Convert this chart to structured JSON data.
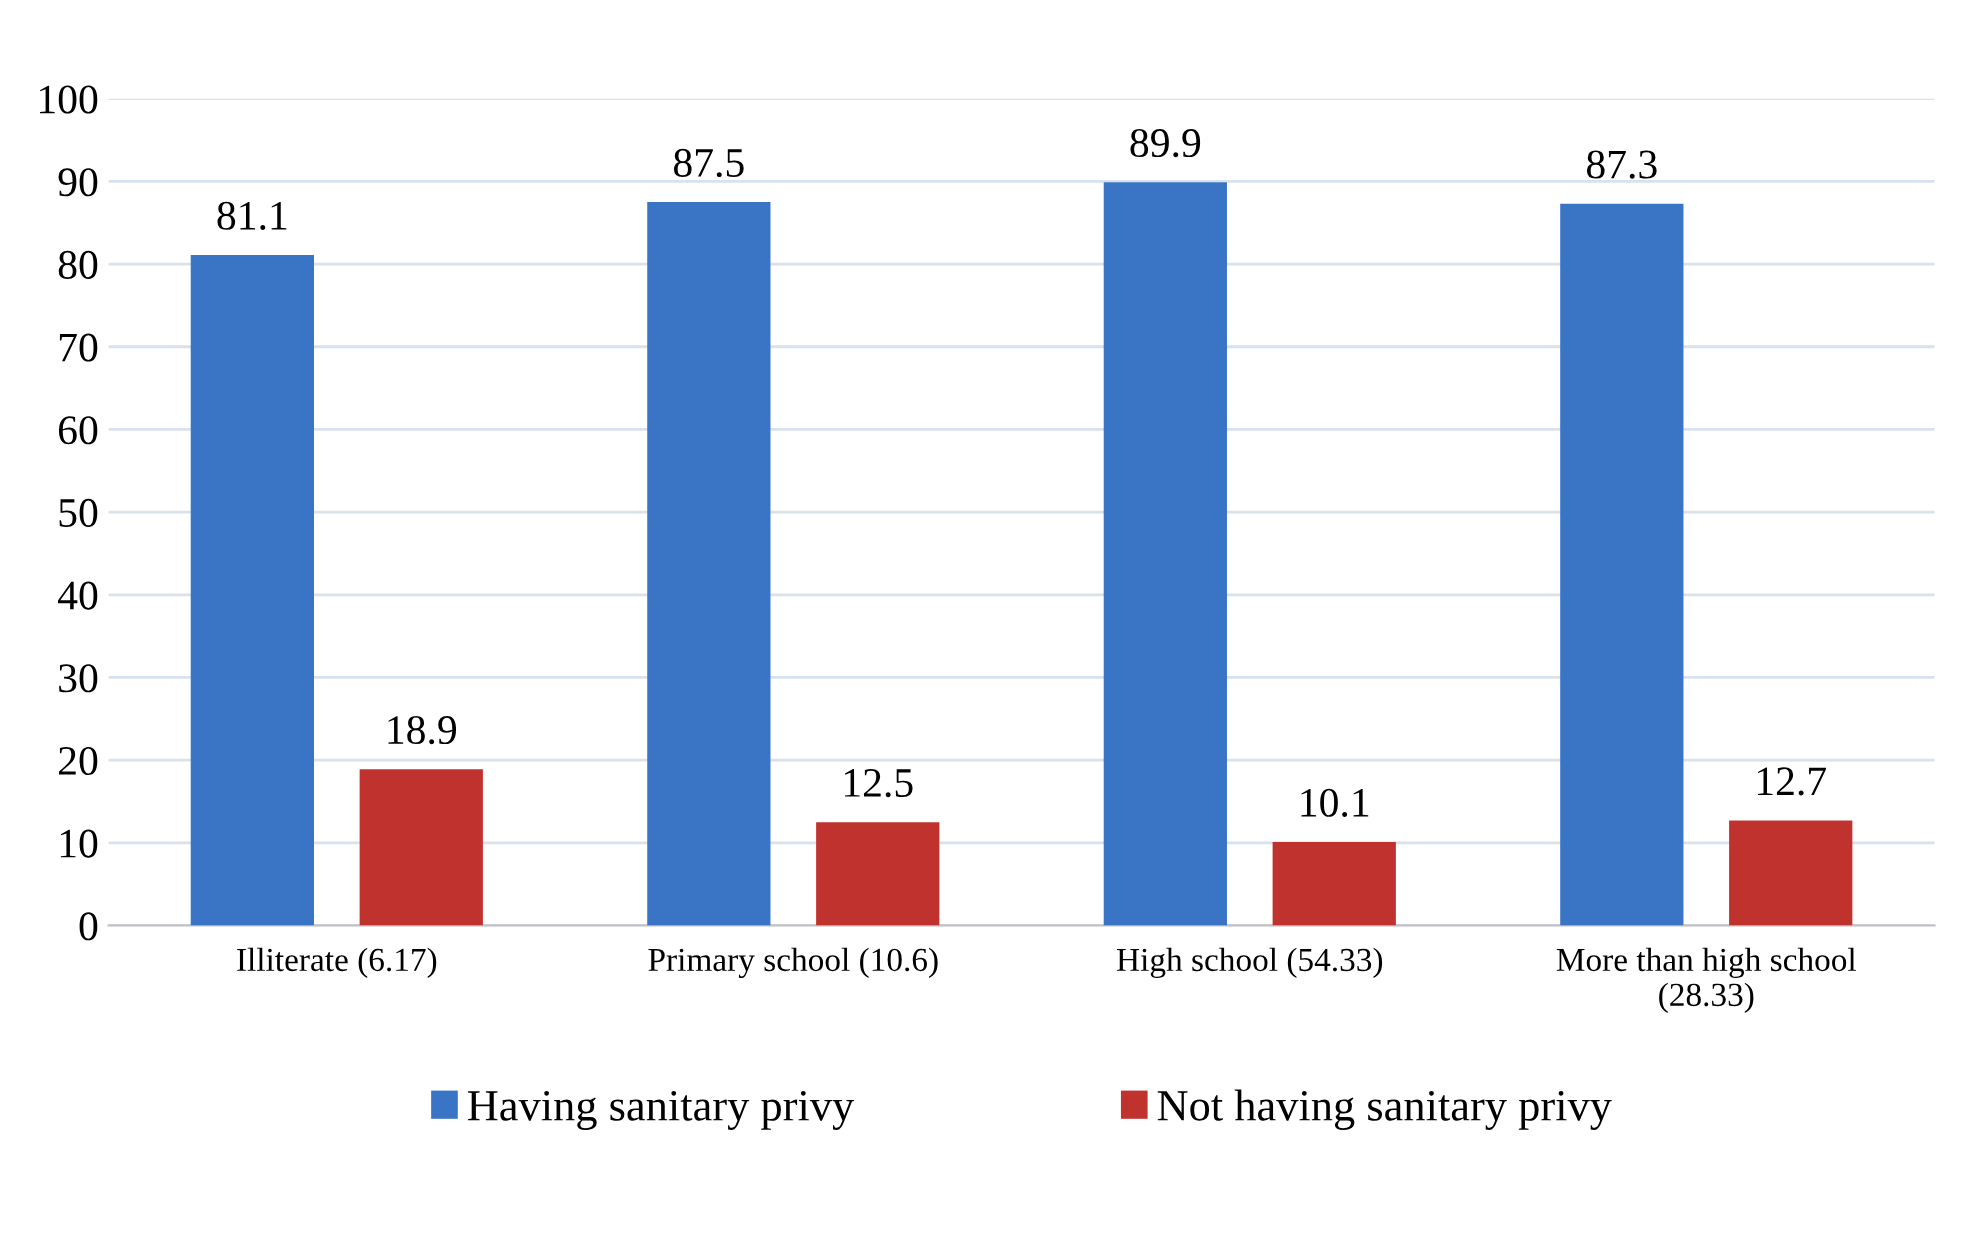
{
  "chart_data": {
    "type": "bar",
    "categories": [
      "Illiterate (6.17)",
      "Primary school (10.6)",
      "High school (54.33)",
      "More than high school\n(28.33)"
    ],
    "series": [
      {
        "name": "Having sanitary privy",
        "color": "#3a74c4",
        "values": [
          81.1,
          87.5,
          89.9,
          87.3
        ]
      },
      {
        "name": "Not having sanitary privy",
        "color": "#c0322e",
        "values": [
          18.9,
          12.5,
          10.1,
          12.7
        ]
      }
    ],
    "ylim": [
      0,
      100
    ],
    "yticks": [
      0,
      10,
      20,
      30,
      40,
      50,
      60,
      70,
      80,
      90,
      100
    ],
    "grid": "y",
    "legend": "bottom",
    "data_labels": true
  }
}
